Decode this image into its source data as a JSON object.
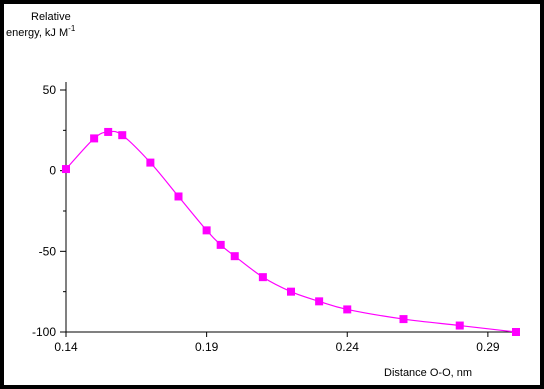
{
  "chart_data": {
    "type": "line",
    "ylabel_line1": "Relative",
    "ylabel_line2": "energy, kJ M",
    "ylabel_superscript": "-1",
    "xlabel": "Distance O-O, nm",
    "xlim": [
      0.14,
      0.3
    ],
    "ylim": [
      -100,
      50
    ],
    "xticks": [
      0.14,
      0.19,
      0.24,
      0.29
    ],
    "xtick_labels": [
      "0.14",
      "0.19",
      "0.24",
      "0.29"
    ],
    "yticks": [
      -100,
      -50,
      0,
      50
    ],
    "ytick_labels": [
      "-100",
      "-50",
      "0",
      "50"
    ],
    "grid": false,
    "legend": "none",
    "series": [
      {
        "color": "#ff00ff",
        "marker": "square",
        "x": [
          0.14,
          0.15,
          0.155,
          0.16,
          0.17,
          0.18,
          0.19,
          0.195,
          0.2,
          0.21,
          0.22,
          0.23,
          0.24,
          0.26,
          0.28,
          0.3
        ],
        "y": [
          1,
          20,
          24,
          22,
          5,
          -16,
          -37,
          -46,
          -53,
          -66,
          -75,
          -81,
          -86,
          -92,
          -96,
          -100
        ]
      }
    ]
  }
}
